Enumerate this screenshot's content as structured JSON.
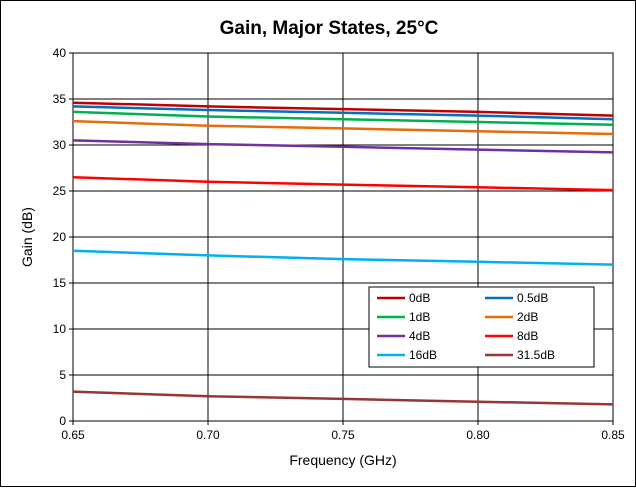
{
  "chart_data": {
    "type": "line",
    "title": "Gain, Major States, 25°C",
    "xlabel": "Frequency (GHz)",
    "ylabel": "Gain (dB)",
    "xlim": [
      0.65,
      0.85
    ],
    "ylim": [
      0,
      40
    ],
    "x_ticks": [
      "0.65",
      "0.70",
      "0.75",
      "0.80",
      "0.85"
    ],
    "y_ticks": [
      "0",
      "5",
      "10",
      "15",
      "20",
      "25",
      "30",
      "35",
      "40"
    ],
    "grid": true,
    "legend_position": "lower-right",
    "x": [
      0.65,
      0.7,
      0.75,
      0.8,
      0.85
    ],
    "series": [
      {
        "name": "0dB",
        "color": "#C00000",
        "values": [
          34.6,
          34.2,
          33.9,
          33.6,
          33.2
        ]
      },
      {
        "name": "0.5dB",
        "color": "#0070C0",
        "values": [
          34.2,
          33.8,
          33.5,
          33.2,
          32.8
        ]
      },
      {
        "name": "1dB",
        "color": "#00B050",
        "values": [
          33.6,
          33.1,
          32.8,
          32.5,
          32.2
        ]
      },
      {
        "name": "2dB",
        "color": "#E46C0A",
        "values": [
          32.6,
          32.1,
          31.8,
          31.5,
          31.2
        ]
      },
      {
        "name": "4dB",
        "color": "#7030A0",
        "values": [
          30.5,
          30.1,
          29.8,
          29.5,
          29.2
        ]
      },
      {
        "name": "8dB",
        "color": "#FF0000",
        "values": [
          26.5,
          26.0,
          25.7,
          25.4,
          25.1
        ]
      },
      {
        "name": "16dB",
        "color": "#00B0F0",
        "values": [
          18.5,
          18.0,
          17.6,
          17.3,
          17.0
        ]
      },
      {
        "name": "31.5dB",
        "color": "#943634",
        "values": [
          3.2,
          2.7,
          2.4,
          2.1,
          1.8
        ]
      }
    ]
  }
}
